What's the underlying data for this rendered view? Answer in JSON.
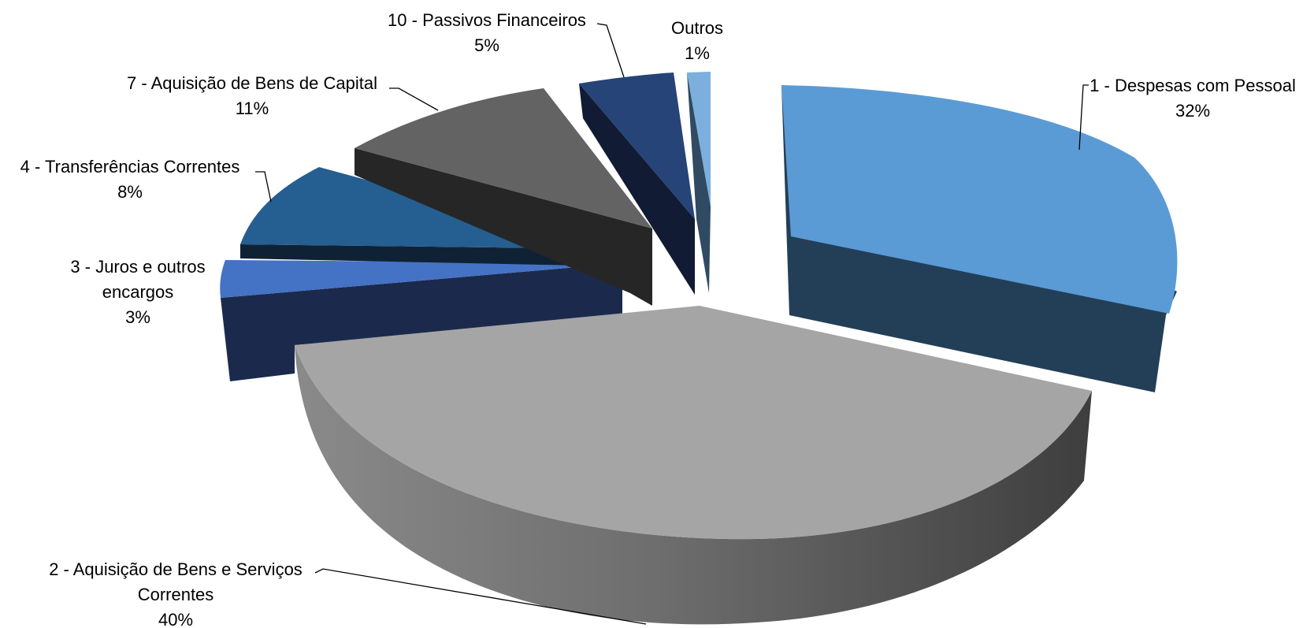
{
  "chart_data": {
    "type": "pie",
    "style": "3d-exploded",
    "title": "",
    "slices": [
      {
        "label": "1 - Despesas com Pessoal",
        "value": 32,
        "value_label": "32%",
        "color": "#5B9BD5",
        "side_color": "#233F57"
      },
      {
        "label": "2 - Aquisição de Bens e Serviços Correntes",
        "label_lines": [
          "2 - Aquisição de Bens e Serviços",
          "Correntes"
        ],
        "value": 40,
        "value_label": "40%",
        "color": "#A5A5A5",
        "side_color": "#7A7A7A"
      },
      {
        "label": "3 - Juros e outros encargos",
        "label_lines": [
          "3 - Juros e outros",
          "encargos"
        ],
        "value": 3,
        "value_label": "3%",
        "color": "#4472C4",
        "side_color": "#1B2A4C"
      },
      {
        "label": "4 - Transferências Correntes",
        "value": 8,
        "value_label": "8%",
        "color": "#255E91",
        "side_color": "#0F2235"
      },
      {
        "label": "7 - Aquisição de Bens de Capital",
        "value": 11,
        "value_label": "11%",
        "color": "#636363",
        "side_color": "#262626"
      },
      {
        "label": "10 - Passivos Financeiros",
        "value": 5,
        "value_label": "5%",
        "color": "#264478",
        "side_color": "#111B33"
      },
      {
        "label": "Outros",
        "value": 1,
        "value_label": "1%",
        "color": "#7CAFDD",
        "side_color": "#2F4A62"
      }
    ]
  }
}
